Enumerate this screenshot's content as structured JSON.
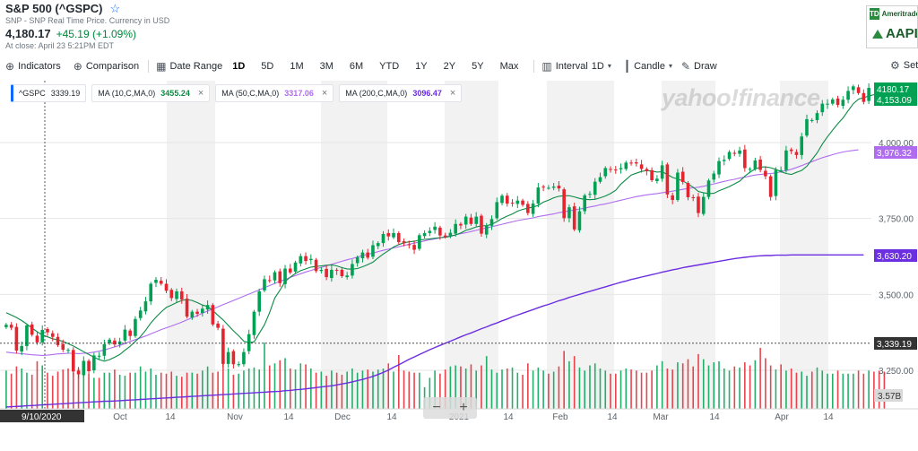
{
  "header": {
    "title": "S&P 500 (^GSPC)",
    "subtitle": "SNP - SNP Real Time Price. Currency in USD",
    "price": "4,180.17",
    "change": "+45.19 (+1.09%)",
    "close_time": "At close: April 23 5:21PM EDT"
  },
  "ad": {
    "brand": "Ameritrade",
    "ticker": "AAPL",
    "logo": "TD"
  },
  "toolbar": {
    "indicators": "Indicators",
    "comparison": "Comparison",
    "date_range": "Date Range",
    "ranges": [
      "1D",
      "5D",
      "1M",
      "3M",
      "6M",
      "YTD",
      "1Y",
      "2Y",
      "5Y",
      "Max"
    ],
    "active_range": "1D",
    "interval": "Interval",
    "interval_value": "1D",
    "candle": "Candle",
    "draw": "Draw",
    "settings": "Settings"
  },
  "legend": {
    "main": {
      "label": "^GSPC",
      "value": "3339.19"
    },
    "ma10": {
      "label": "MA (10,C,MA,0)",
      "value": "3455.24",
      "color": "#0d8a45"
    },
    "ma50": {
      "label": "MA (50,C,MA,0)",
      "value": "3317.06",
      "color": "#b06cf0"
    },
    "ma200": {
      "label": "MA (200,C,MA,0)",
      "value": "3096.47",
      "color": "#6b2ee0"
    }
  },
  "watermark": "yahoo!finance",
  "zoom": {
    "minus": "−",
    "plus": "+"
  },
  "chart_data": {
    "type": "candlestick",
    "y_ticks": [
      "3,250.00",
      "3,500.00",
      "3,750.00",
      "4,000.00"
    ],
    "y_tick_values": [
      3250,
      3500,
      3750,
      4000
    ],
    "x_labels": [
      "Oct",
      "14",
      "Nov",
      "14",
      "Dec",
      "14",
      "2021",
      "14",
      "Feb",
      "14",
      "Mar",
      "14",
      "Apr",
      "14"
    ],
    "crosshair_date": "9/10/2020",
    "crosshair_value": "3,339.19",
    "price_tags": [
      {
        "label": "4180.17",
        "color": "#00a152"
      },
      {
        "label": "4,153.09",
        "color": "#00a152"
      },
      {
        "label": "3,976.32",
        "color": "#b06cf0"
      },
      {
        "label": "3,630.20",
        "color": "#6b2ee0"
      },
      {
        "label": "3,339.19",
        "color": "#333333"
      }
    ],
    "volume_label": "3.57B",
    "colors": {
      "up": "#00a152",
      "down": "#e4252f",
      "ma10": "#0d8a45",
      "ma50": "#b06cf0",
      "ma200": "#6b2ee0"
    },
    "closes": [
      3400,
      3390,
      3315,
      3330,
      3398,
      3367,
      3342,
      3383,
      3375,
      3360,
      3333,
      3318,
      3317,
      3246,
      3237,
      3281,
      3247,
      3299,
      3298,
      3336,
      3351,
      3335,
      3345,
      3384,
      3363,
      3419,
      3447,
      3477,
      3535,
      3548,
      3535,
      3512,
      3488,
      3510,
      3483,
      3427,
      3443,
      3436,
      3453,
      3465,
      3401,
      3390,
      3271,
      3310,
      3270,
      3270,
      3310,
      3369,
      3443,
      3510,
      3550,
      3546,
      3573,
      3537,
      3585,
      3572,
      3605,
      3626,
      3610,
      3617,
      3577,
      3581,
      3557,
      3581,
      3578,
      3560,
      3562,
      3600,
      3622,
      3638,
      3621,
      3662,
      3669,
      3699,
      3691,
      3702,
      3672,
      3668,
      3663,
      3647,
      3695,
      3702,
      3709,
      3723,
      3694,
      3690,
      3703,
      3732,
      3727,
      3756,
      3732,
      3756,
      3700,
      3726,
      3748,
      3804,
      3825,
      3799,
      3801,
      3809,
      3795,
      3768,
      3799,
      3852,
      3854,
      3851,
      3855,
      3849,
      3751,
      3787,
      3714,
      3774,
      3826,
      3831,
      3871,
      3886,
      3916,
      3911,
      3909,
      3916,
      3934,
      3932,
      3931,
      3913,
      3906,
      3876,
      3881,
      3925,
      3829,
      3811,
      3901,
      3870,
      3820,
      3819,
      3768,
      3821,
      3875,
      3898,
      3939,
      3943,
      3969,
      3963,
      3974,
      3916,
      3913,
      3941,
      3910,
      3889,
      3821,
      3910,
      3909,
      3974,
      3972,
      3959,
      4020,
      4077,
      4074,
      4097,
      4128,
      4128,
      4142,
      4124,
      4141,
      4170,
      4185,
      4163,
      4134,
      4180
    ],
    "volumes": [
      3.7,
      3.4,
      4.1,
      3.9,
      3.5,
      3.3,
      4.6,
      4.2,
      3.5,
      3.2,
      3.6,
      3.8,
      3.9,
      3.5,
      3.9,
      3.4,
      3.4,
      3.0,
      3.0,
      3.5,
      3.5,
      3.8,
      3.3,
      3.2,
      3.5,
      3.5,
      4.1,
      3.6,
      3.9,
      3.3,
      3.5,
      3.4,
      3.6,
      3.2,
      3.1,
      3.5,
      3.5,
      3.4,
      3.7,
      4.1,
      3.5,
      3.6,
      4.5,
      3.9,
      3.3,
      3.4,
      3.7,
      3.9,
      4.0,
      3.8,
      6.4,
      4.2,
      4.4,
      4.7,
      4.9,
      3.9,
      3.8,
      4.4,
      4.3,
      3.9,
      3.5,
      3.6,
      3.2,
      3.7,
      3.5,
      3.3,
      3.6,
      3.9,
      3.5,
      3.7,
      3.8,
      3.6,
      3.8,
      3.9,
      4.4,
      3.6,
      5.2,
      3.7,
      3.6,
      3.5,
      3.5,
      2.1,
      3.0,
      3.7,
      3.4,
      3.8,
      4.1,
      4.2,
      4.1,
      3.9,
      4.3,
      3.7,
      4.2,
      5.1,
      3.8,
      3.5,
      3.8,
      3.9,
      4.0,
      3.5,
      3.3,
      4.4,
      3.7,
      4.0,
      3.7,
      3.4,
      3.6,
      4.1,
      5.6,
      4.6,
      5.1,
      4.0,
      3.7,
      4.2,
      4.4,
      3.9,
      3.7,
      3.4,
      3.4,
      3.7,
      3.9,
      3.8,
      3.7,
      3.5,
      3.5,
      3.7,
      4.2,
      4.6,
      3.9,
      3.8,
      4.5,
      4.4,
      4.8,
      4.1,
      5.3,
      4.8,
      4.2,
      4.5,
      4.6,
      3.9,
      3.7,
      4.1,
      4.0,
      4.5,
      4.2,
      4.7,
      5.9,
      4.9,
      4.2,
      3.8,
      4.3,
      3.7,
      3.9,
      3.5,
      3.6,
      3.2,
      3.6,
      4.0,
      3.7,
      3.4,
      3.4,
      3.7,
      3.4,
      3.4,
      3.4,
      3.7,
      3.4,
      3.7,
      3.6,
      3.7,
      3.6
    ],
    "ma10": [
      3440,
      3432,
      3424,
      3414,
      3402,
      3389,
      3377,
      3366,
      3360,
      3354,
      3350,
      3345,
      3338,
      3330,
      3321,
      3311,
      3302,
      3293,
      3285,
      3280,
      3285,
      3293,
      3302,
      3316,
      3329,
      3345,
      3361,
      3382,
      3406,
      3425,
      3442,
      3457,
      3465,
      3473,
      3480,
      3483,
      3480,
      3473,
      3465,
      3460,
      3447,
      3431,
      3416,
      3398,
      3380,
      3364,
      3346,
      3341,
      3344,
      3372,
      3400,
      3440,
      3488,
      3514,
      3542,
      3557,
      3569,
      3578,
      3584,
      3590,
      3592,
      3594,
      3596,
      3597,
      3594,
      3588,
      3584,
      3583,
      3585,
      3591,
      3598,
      3606,
      3620,
      3633,
      3644,
      3656,
      3664,
      3670,
      3673,
      3675,
      3679,
      3681,
      3683,
      3685,
      3687,
      3688,
      3691,
      3696,
      3702,
      3711,
      3716,
      3722,
      3726,
      3726,
      3731,
      3740,
      3750,
      3758,
      3765,
      3774,
      3780,
      3784,
      3788,
      3793,
      3804,
      3810,
      3818,
      3823,
      3825,
      3825,
      3821,
      3816,
      3813,
      3812,
      3813,
      3818,
      3824,
      3832,
      3843,
      3863,
      3878,
      3893,
      3899,
      3905,
      3908,
      3906,
      3903,
      3904,
      3895,
      3885,
      3880,
      3874,
      3863,
      3853,
      3839,
      3835,
      3832,
      3833,
      3841,
      3848,
      3855,
      3864,
      3873,
      3889,
      3903,
      3913,
      3919,
      3920,
      3917,
      3912,
      3904,
      3898,
      3895,
      3902,
      3908,
      3922,
      3944,
      3966,
      3995,
      4019,
      4041,
      4062,
      4081,
      4105,
      4128,
      4143,
      4148,
      4153,
      4158
    ],
    "ma50": [
      3310,
      3308,
      3306,
      3305,
      3303,
      3301,
      3300,
      3299,
      3300,
      3302,
      3304,
      3305,
      3306,
      3306,
      3305,
      3306,
      3307,
      3310,
      3313,
      3317,
      3322,
      3327,
      3332,
      3338,
      3345,
      3351,
      3357,
      3363,
      3370,
      3377,
      3384,
      3390,
      3396,
      3402,
      3409,
      3416,
      3423,
      3430,
      3438,
      3445,
      3452,
      3459,
      3466,
      3473,
      3480,
      3487,
      3494,
      3501,
      3508,
      3515,
      3522,
      3529,
      3536,
      3543,
      3549,
      3556,
      3562,
      3568,
      3574,
      3579,
      3584,
      3589,
      3594,
      3599,
      3604,
      3609,
      3614,
      3618,
      3623,
      3628,
      3632,
      3636,
      3641,
      3645,
      3649,
      3653,
      3657,
      3661,
      3665,
      3669,
      3672,
      3676,
      3680,
      3683,
      3686,
      3690,
      3693,
      3696,
      3700,
      3703,
      3707,
      3711,
      3715,
      3719,
      3723,
      3727,
      3731,
      3735,
      3739,
      3743,
      3746,
      3749,
      3752,
      3756,
      3759,
      3762,
      3765,
      3769,
      3772,
      3775,
      3778,
      3781,
      3784,
      3788,
      3791,
      3795,
      3798,
      3802,
      3806,
      3810,
      3814,
      3818,
      3822,
      3825,
      3828,
      3830,
      3832,
      3835,
      3837,
      3840,
      3843,
      3846,
      3849,
      3851,
      3853,
      3856,
      3860,
      3864,
      3868,
      3872,
      3876,
      3879,
      3883,
      3886,
      3890,
      3893,
      3895,
      3897,
      3898,
      3900,
      3904,
      3908,
      3912,
      3918,
      3924,
      3931,
      3937,
      3944,
      3950,
      3955,
      3960,
      3965,
      3969,
      3972,
      3974,
      3976
    ],
    "ma200": [
      3129,
      3130,
      3131,
      3132,
      3133,
      3134,
      3135,
      3136,
      3137,
      3138,
      3139,
      3140,
      3141,
      3142,
      3143,
      3144,
      3145,
      3146,
      3147,
      3148,
      3148,
      3149,
      3150,
      3151,
      3152,
      3153,
      3154,
      3155,
      3156,
      3157,
      3158,
      3159,
      3160,
      3161,
      3162,
      3163,
      3164,
      3165,
      3166,
      3167,
      3168,
      3169,
      3170,
      3171,
      3172,
      3173,
      3174,
      3175,
      3176,
      3177,
      3178,
      3179,
      3180,
      3181,
      3183,
      3184,
      3186,
      3187,
      3189,
      3191,
      3193,
      3195,
      3197,
      3199,
      3202,
      3205,
      3208,
      3212,
      3216,
      3220,
      3225,
      3230,
      3236,
      3243,
      3251,
      3260,
      3268,
      3277,
      3286,
      3294,
      3302,
      3310,
      3318,
      3325,
      3332,
      3339,
      3346,
      3353,
      3360,
      3367,
      3373,
      3380,
      3387,
      3393,
      3400,
      3406,
      3413,
      3419,
      3426,
      3432,
      3438,
      3444,
      3450,
      3456,
      3462,
      3467,
      3473,
      3479,
      3484,
      3490,
      3495,
      3500,
      3505,
      3510,
      3515,
      3520,
      3525,
      3530,
      3535,
      3540,
      3544,
      3549,
      3553,
      3557,
      3561,
      3565,
      3569,
      3573,
      3577,
      3581,
      3584,
      3588,
      3591,
      3594,
      3597,
      3600,
      3603,
      3606,
      3609,
      3612,
      3615,
      3618,
      3620,
      3622,
      3624,
      3626,
      3627,
      3628,
      3628,
      3629,
      3629,
      3629,
      3630,
      3630,
      3630,
      3630,
      3630,
      3630,
      3630,
      3630,
      3630,
      3630,
      3630,
      3630,
      3630,
      3630,
      3630
    ]
  }
}
